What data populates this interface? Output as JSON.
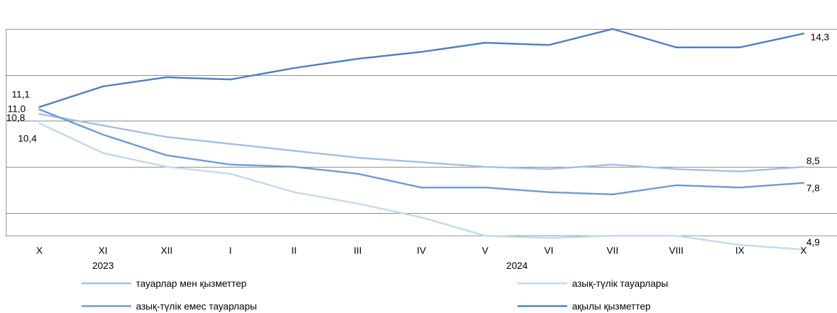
{
  "chart_data": {
    "type": "line",
    "categories": [
      "X",
      "XI",
      "XII",
      "I",
      "II",
      "III",
      "IV",
      "V",
      "VI",
      "VII",
      "VIII",
      "IX",
      "X"
    ],
    "year_labels": [
      {
        "text": "2023",
        "index": 1
      },
      {
        "text": "2024",
        "index": 7.5
      }
    ],
    "ylim": [
      5.5,
      14.5
    ],
    "y_gridlines": [
      14.5,
      12.5,
      10.5,
      8.5,
      6.5
    ],
    "grid": true,
    "legend": "bottom",
    "series": [
      {
        "name": "тауарлар мен қызметтер",
        "color": "#a5bfe2",
        "values": [
          10.8,
          10.3,
          9.8,
          9.5,
          9.2,
          8.9,
          8.7,
          8.5,
          8.4,
          8.6,
          8.4,
          8.3,
          8.5
        ],
        "labels": [
          {
            "index": 0,
            "text": "10,8"
          },
          {
            "index": 12,
            "text": "8,5"
          }
        ]
      },
      {
        "name": "азық-түлік тауарлары",
        "color": "#c5d8ee",
        "values": [
          10.4,
          9.1,
          8.5,
          8.2,
          7.4,
          6.9,
          6.3,
          5.5,
          5.4,
          5.5,
          5.5,
          5.1,
          4.9
        ],
        "labels": [
          {
            "index": 0,
            "text": "10,4"
          },
          {
            "index": 12,
            "text": "4,9"
          }
        ]
      },
      {
        "name": "азық-түлік емес тауарлары",
        "color": "#6f9bd5",
        "values": [
          11.0,
          9.9,
          9.0,
          8.6,
          8.5,
          8.2,
          7.6,
          7.6,
          7.4,
          7.3,
          7.7,
          7.6,
          7.8
        ],
        "labels": [
          {
            "index": 0,
            "text": "11,0"
          },
          {
            "index": 12,
            "text": "7,8"
          }
        ]
      },
      {
        "name": "ақылы қызметтер",
        "color": "#4e7fc2",
        "values": [
          11.1,
          12.0,
          12.4,
          12.3,
          12.8,
          13.2,
          13.5,
          13.9,
          13.8,
          14.5,
          13.7,
          13.7,
          14.3
        ],
        "labels": [
          {
            "index": 0,
            "text": "11,1"
          },
          {
            "index": 12,
            "text": "14,3"
          }
        ]
      }
    ]
  }
}
